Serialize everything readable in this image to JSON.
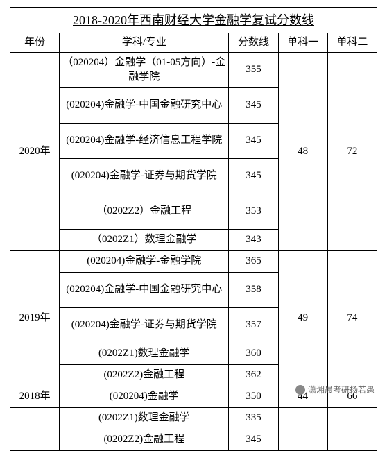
{
  "title": "2018-2020年西南财经大学金融学复试分数线",
  "headers": {
    "year": "年份",
    "subject": "学科/专业",
    "score": "分数线",
    "sub1": "单科一",
    "sub2": "单科二"
  },
  "y2020": {
    "year": "2020年",
    "rows": [
      {
        "subject": "（020204）金融学（01-05方向）-金融学院",
        "score": "355"
      },
      {
        "subject": "(020204)金融学-中国金融研究中心",
        "score": "345"
      },
      {
        "subject": "(020204)金融学-经济信息工程学院",
        "score": "345"
      },
      {
        "subject": "(020204)金融学-证券与期货学院",
        "score": "345"
      },
      {
        "subject": "（0202Z2）金融工程",
        "score": "353"
      },
      {
        "subject": "（0202Z1）数理金融学",
        "score": "343"
      }
    ],
    "sub1": "48",
    "sub2": "72"
  },
  "y2019": {
    "year": "2019年",
    "rows": [
      {
        "subject": "(020204)金融学-金融学院",
        "score": "365"
      },
      {
        "subject": "(020204)金融学-中国金融研究中心",
        "score": "358"
      },
      {
        "subject": "(020204)金融学-证券与期货学院",
        "score": "357"
      },
      {
        "subject": "(0202Z1)数理金融学",
        "score": "360"
      },
      {
        "subject": "(0202Z2)金融工程",
        "score": "362"
      }
    ],
    "sub1": "49",
    "sub2": "74"
  },
  "y2018": {
    "year": "2018年",
    "rows": [
      {
        "subject": "(020204)金融学",
        "score": "350",
        "sub1": "44",
        "sub2": "66"
      },
      {
        "subject": "(0202Z1)数理金融学",
        "score": "335"
      },
      {
        "subject": "(0202Z2)金融工程",
        "score": "345"
      }
    ]
  },
  "watermark": "潇湘晨考研杨若愚",
  "colwidths": {
    "year": "70",
    "subject": "240",
    "score": "70",
    "sub1": "70",
    "sub2": "70"
  },
  "colors": {
    "border": "#000000",
    "bg": "#ffffff",
    "text": "#000000"
  }
}
